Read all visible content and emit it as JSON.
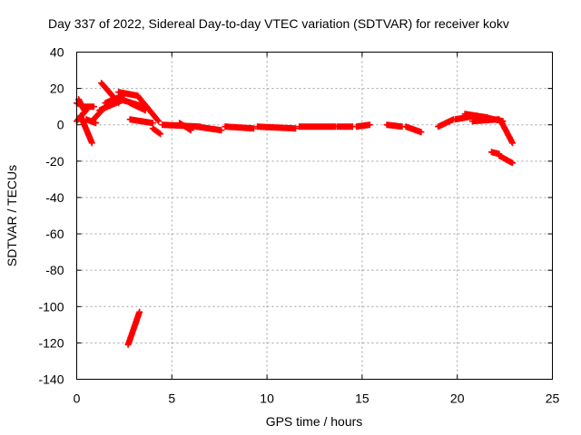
{
  "chart_data": {
    "type": "scatter",
    "title": "Day 337 of 2022, Sidereal Day-to-day VTEC variation (SDTVAR) for receiver kokv",
    "xlabel": "GPS time / hours",
    "ylabel": "SDTVAR / TECUs",
    "xlim": [
      0,
      25
    ],
    "ylim": [
      -140,
      40
    ],
    "xticks": [
      0,
      5,
      10,
      15,
      20,
      25
    ],
    "yticks": [
      -140,
      -120,
      -100,
      -80,
      -60,
      -40,
      -20,
      0,
      20,
      40
    ],
    "grid": true,
    "marker": "+",
    "marker_color": "#ff0000",
    "series": [
      {
        "name": "SDTVAR",
        "segments": [
          {
            "x0": 0.0,
            "y0": 12,
            "x1": 0.2,
            "y1": 11
          },
          {
            "x0": 0.0,
            "y0": 2,
            "x1": 0.5,
            "y1": 8
          },
          {
            "x0": 0.1,
            "y0": 14,
            "x1": 0.4,
            "y1": 8
          },
          {
            "x0": 0.2,
            "y0": 5,
            "x1": 0.8,
            "y1": -10
          },
          {
            "x0": 0.3,
            "y0": 10,
            "x1": 0.9,
            "y1": 10
          },
          {
            "x0": 0.5,
            "y0": 3,
            "x1": 1.0,
            "y1": 1
          },
          {
            "x0": 0.8,
            "y0": 2,
            "x1": 1.5,
            "y1": 10
          },
          {
            "x0": 1.3,
            "y0": 23,
            "x1": 2.2,
            "y1": 12
          },
          {
            "x0": 1.2,
            "y0": 8,
            "x1": 2.5,
            "y1": 14
          },
          {
            "x0": 1.5,
            "y0": 12,
            "x1": 2.4,
            "y1": 16
          },
          {
            "x0": 2.2,
            "y0": 18,
            "x1": 3.2,
            "y1": 16
          },
          {
            "x0": 2.3,
            "y0": 14,
            "x1": 3.5,
            "y1": 10
          },
          {
            "x0": 3.2,
            "y0": 16,
            "x1": 4.3,
            "y1": 2
          },
          {
            "x0": 2.8,
            "y0": 12,
            "x1": 3.6,
            "y1": 8
          },
          {
            "x0": 2.8,
            "y0": 3,
            "x1": 4.0,
            "y1": 1
          },
          {
            "x0": 4.0,
            "y0": -2,
            "x1": 4.4,
            "y1": -5
          },
          {
            "x0": 2.7,
            "y0": -121,
            "x1": 3.3,
            "y1": -103
          },
          {
            "x0": 4.5,
            "y0": 0,
            "x1": 6.5,
            "y1": -1
          },
          {
            "x0": 5.4,
            "y0": 1,
            "x1": 6.0,
            "y1": -3
          },
          {
            "x0": 6.3,
            "y0": -1,
            "x1": 7.6,
            "y1": -3
          },
          {
            "x0": 7.8,
            "y0": -1,
            "x1": 9.3,
            "y1": -2
          },
          {
            "x0": 9.5,
            "y0": -1,
            "x1": 11.5,
            "y1": -2
          },
          {
            "x0": 11.7,
            "y0": -1,
            "x1": 13.6,
            "y1": -1
          },
          {
            "x0": 13.7,
            "y0": -1,
            "x1": 14.5,
            "y1": -1
          },
          {
            "x0": 14.7,
            "y0": -1,
            "x1": 15.4,
            "y1": 0
          },
          {
            "x0": 16.3,
            "y0": 0,
            "x1": 17.1,
            "y1": -1
          },
          {
            "x0": 17.3,
            "y0": -1,
            "x1": 18.1,
            "y1": -4
          },
          {
            "x0": 19.0,
            "y0": -1,
            "x1": 19.8,
            "y1": 3
          },
          {
            "x0": 19.9,
            "y0": 3,
            "x1": 21.0,
            "y1": 5
          },
          {
            "x0": 20.4,
            "y0": 6,
            "x1": 21.6,
            "y1": 4
          },
          {
            "x0": 20.8,
            "y0": 2,
            "x1": 22.2,
            "y1": 3
          },
          {
            "x0": 21.5,
            "y0": 4,
            "x1": 22.4,
            "y1": 2
          },
          {
            "x0": 22.3,
            "y0": 2,
            "x1": 22.9,
            "y1": -10
          },
          {
            "x0": 21.8,
            "y0": -15,
            "x1": 22.2,
            "y1": -16
          },
          {
            "x0": 22.2,
            "y0": -17,
            "x1": 22.9,
            "y1": -21
          }
        ]
      }
    ]
  }
}
